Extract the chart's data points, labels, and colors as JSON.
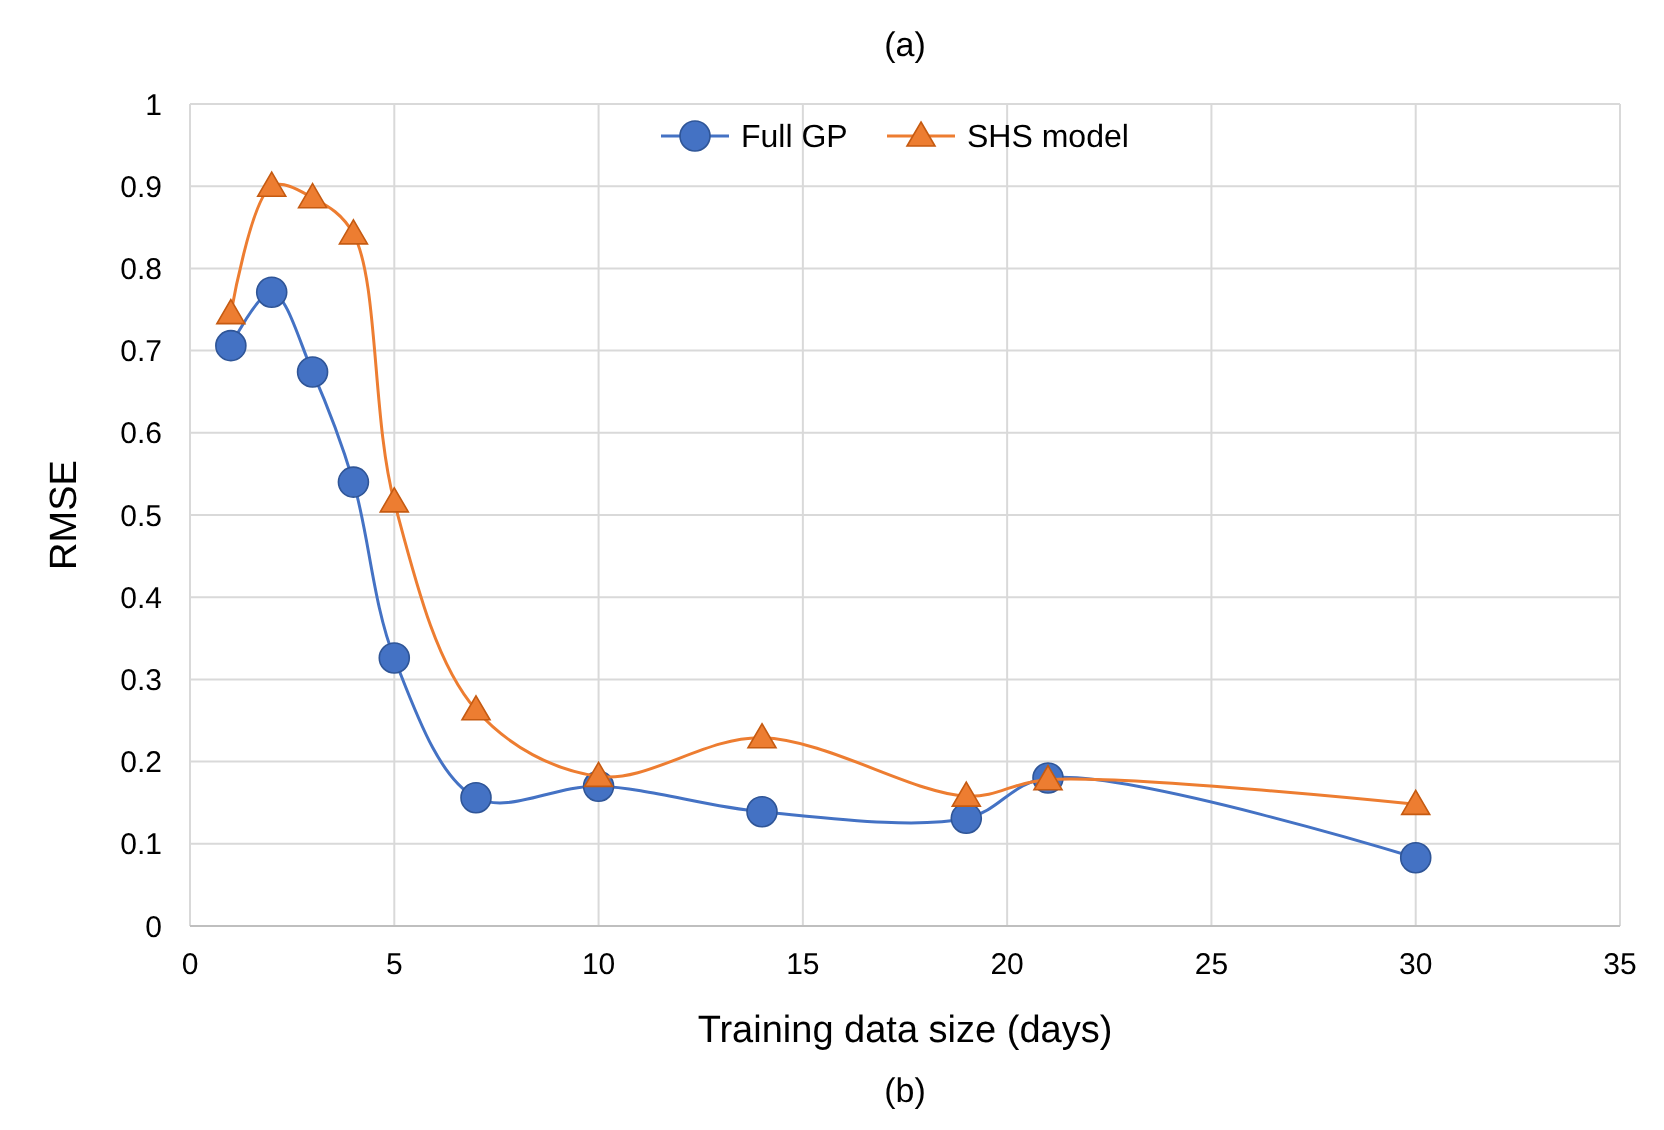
{
  "chart_data": {
    "type": "line",
    "title": "(a)",
    "xlabel": "Training data size (days)",
    "ylabel": "RMSE",
    "annotations": [
      "(b)"
    ],
    "xlim": [
      0,
      35
    ],
    "xticks": [
      0,
      5,
      10,
      15,
      20,
      25,
      30,
      35
    ],
    "ylim": [
      0,
      1
    ],
    "yticks": [
      0,
      0.1,
      0.2,
      0.3,
      0.4,
      0.5,
      0.6,
      0.7,
      0.8,
      0.9,
      1
    ],
    "grid": true,
    "legend": "top",
    "line_style": "solid",
    "series": [
      {
        "name": "Full GP",
        "color": "#4472c4",
        "marker": "circle",
        "x": [
          1,
          2,
          3,
          4,
          5,
          7,
          10,
          14,
          19,
          21,
          30
        ],
        "values": [
          0.706,
          0.771,
          0.674,
          0.54,
          0.326,
          0.156,
          0.17,
          0.139,
          0.131,
          0.18,
          0.083
        ]
      },
      {
        "name": "SHS model",
        "color": "#ed7d31",
        "marker": "triangle",
        "x": [
          1,
          2,
          3,
          4,
          5,
          7,
          10,
          14,
          19,
          21,
          30
        ],
        "values": [
          0.745,
          0.9,
          0.886,
          0.842,
          0.516,
          0.263,
          0.182,
          0.229,
          0.158,
          0.178,
          0.148
        ]
      }
    ]
  }
}
